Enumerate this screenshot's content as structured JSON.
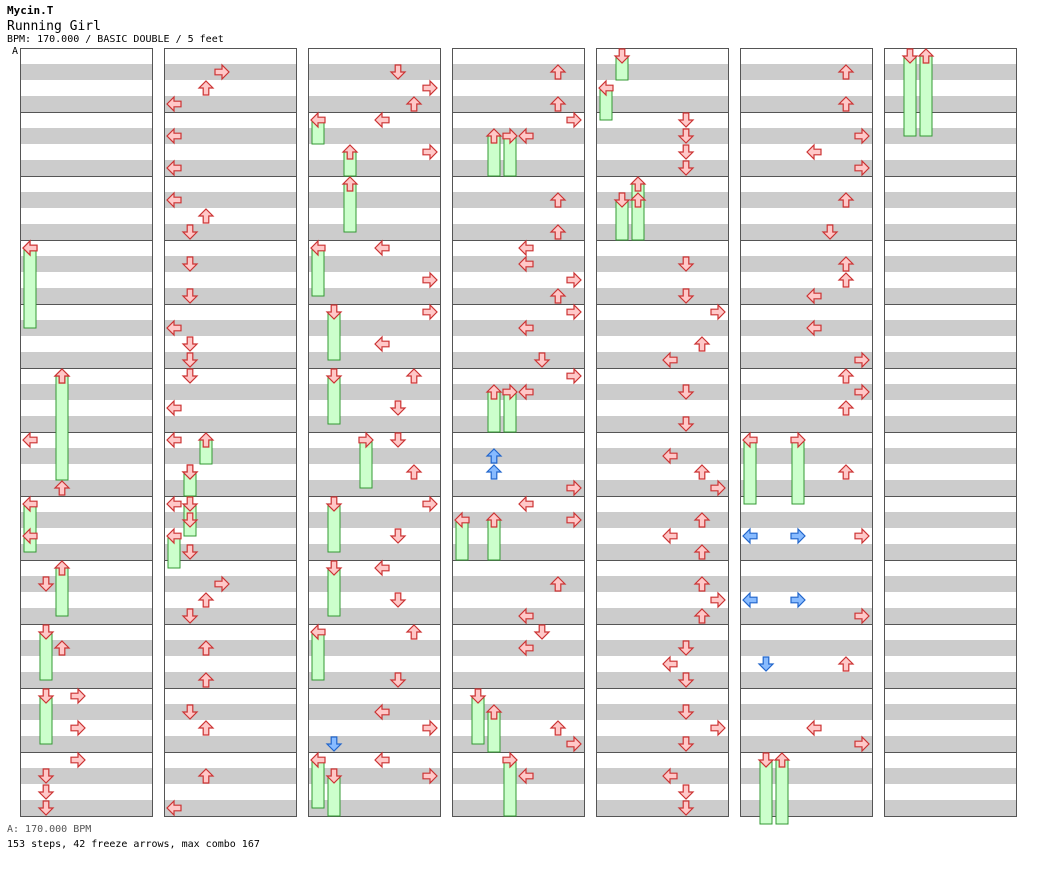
{
  "header": {
    "artist": "Mycin.T",
    "title": "Running Girl",
    "info": "BPM: 170.000 / BASIC DOUBLE / 5 feet",
    "bpm_marker": "A"
  },
  "footer": {
    "bpm_line": "A: 170.000 BPM",
    "stats": "153 steps, 42 freeze arrows, max combo 167"
  },
  "colors": {
    "step": "#ffc8c8",
    "step_stroke": "#cc3333",
    "freeze": "#ccffcc",
    "freeze_stroke": "#339933",
    "special": "#88bbff",
    "special_stroke": "#2266cc",
    "stripe": "#cccccc"
  },
  "chart": {
    "columns": 7,
    "measures_per_column": 12,
    "notes": [
      [
        0,
        3,
        0,
        "left",
        5
      ],
      [
        0,
        5,
        0,
        "up",
        4
      ],
      [
        0,
        6,
        0,
        "left",
        4
      ],
      [
        0,
        6,
        12,
        "up",
        4
      ],
      [
        0,
        7,
        8,
        "left",
        4
      ],
      [
        0,
        8,
        4,
        "down",
        4
      ],
      [
        0,
        9,
        4,
        "up",
        4
      ],
      [
        0,
        11,
        4,
        "down",
        4
      ],
      [
        0,
        11,
        8,
        "down",
        4
      ],
      [
        0,
        11,
        12,
        "down",
        4
      ],
      [
        0,
        10,
        0,
        "right",
        4
      ],
      [
        0,
        10,
        8,
        "right",
        4
      ],
      [
        0,
        11,
        0,
        "right",
        4
      ],
      [
        1,
        0,
        4,
        "right",
        3
      ],
      [
        1,
        0,
        8,
        "up",
        3
      ],
      [
        1,
        0,
        12,
        "left",
        3
      ],
      [
        1,
        1,
        4,
        "left",
        3
      ],
      [
        1,
        1,
        12,
        "left",
        3
      ],
      [
        1,
        2,
        4,
        "left",
        3
      ],
      [
        1,
        2,
        8,
        "up",
        3
      ],
      [
        1,
        2,
        12,
        "down",
        3
      ],
      [
        1,
        3,
        4,
        "down",
        3
      ],
      [
        1,
        3,
        12,
        "down",
        3
      ],
      [
        1,
        4,
        4,
        "left",
        3
      ],
      [
        1,
        4,
        8,
        "down",
        3
      ],
      [
        1,
        4,
        12,
        "down",
        3
      ],
      [
        1,
        5,
        0,
        "down",
        3
      ],
      [
        1,
        5,
        8,
        "left",
        3
      ],
      [
        1,
        6,
        0,
        "left",
        3
      ],
      [
        1,
        6,
        8,
        "down",
        3
      ],
      [
        1,
        7,
        0,
        "left",
        3
      ],
      [
        1,
        7,
        4,
        "down",
        3
      ],
      [
        1,
        7,
        12,
        "down",
        3
      ],
      [
        1,
        8,
        4,
        "right",
        3
      ],
      [
        1,
        8,
        8,
        "up",
        3
      ],
      [
        1,
        8,
        12,
        "down",
        3
      ],
      [
        1,
        9,
        4,
        "up",
        3
      ],
      [
        1,
        9,
        12,
        "up",
        3
      ],
      [
        1,
        10,
        4,
        "down",
        3
      ],
      [
        1,
        10,
        8,
        "up",
        3
      ],
      [
        1,
        11,
        4,
        "up",
        3
      ],
      [
        1,
        11,
        12,
        "left",
        3
      ],
      [
        2,
        0,
        4,
        "down",
        2
      ],
      [
        2,
        0,
        8,
        "right",
        2
      ],
      [
        2,
        0,
        12,
        "up",
        2
      ],
      [
        2,
        1,
        0,
        "left",
        2
      ],
      [
        2,
        1,
        8,
        "right",
        2
      ],
      [
        2,
        3,
        0,
        "left",
        2
      ],
      [
        2,
        3,
        8,
        "right",
        2
      ],
      [
        2,
        4,
        0,
        "right",
        2
      ],
      [
        2,
        4,
        8,
        "left",
        2
      ],
      [
        2,
        5,
        0,
        "up",
        2
      ],
      [
        2,
        5,
        8,
        "down",
        2
      ],
      [
        2,
        6,
        0,
        "down",
        2
      ],
      [
        2,
        6,
        8,
        "up",
        2
      ],
      [
        2,
        7,
        0,
        "right",
        2
      ],
      [
        2,
        7,
        8,
        "down",
        2
      ],
      [
        2,
        8,
        0,
        "left",
        2
      ],
      [
        2,
        8,
        8,
        "down",
        2
      ],
      [
        2,
        9,
        0,
        "up",
        2
      ],
      [
        2,
        9,
        12,
        "down",
        2
      ],
      [
        2,
        10,
        4,
        "left",
        2
      ],
      [
        2,
        10,
        8,
        "right",
        2
      ],
      [
        2,
        11,
        0,
        "left",
        2
      ],
      [
        2,
        11,
        4,
        "right",
        2
      ],
      [
        3,
        0,
        4,
        "up",
        2
      ],
      [
        3,
        0,
        12,
        "up",
        2
      ],
      [
        3,
        1,
        0,
        "right",
        2
      ],
      [
        3,
        1,
        4,
        "left",
        2
      ],
      [
        3,
        2,
        4,
        "up",
        2
      ],
      [
        3,
        2,
        12,
        "up",
        2
      ],
      [
        3,
        3,
        0,
        "left",
        2
      ],
      [
        3,
        3,
        4,
        "left",
        2
      ],
      [
        3,
        3,
        8,
        "right",
        2
      ],
      [
        3,
        3,
        12,
        "up",
        2
      ],
      [
        3,
        4,
        0,
        "right",
        2
      ],
      [
        3,
        4,
        4,
        "left",
        2
      ],
      [
        3,
        4,
        12,
        "down",
        2
      ],
      [
        3,
        5,
        0,
        "right",
        2
      ],
      [
        3,
        5,
        4,
        "left",
        2
      ],
      [
        3,
        6,
        12,
        "right",
        2
      ],
      [
        3,
        7,
        0,
        "left",
        2
      ],
      [
        3,
        7,
        4,
        "right",
        2
      ],
      [
        3,
        8,
        4,
        "up",
        2
      ],
      [
        3,
        8,
        12,
        "left",
        2
      ],
      [
        3,
        9,
        0,
        "down",
        2
      ],
      [
        3,
        9,
        4,
        "left",
        2
      ],
      [
        3,
        10,
        8,
        "up",
        2
      ],
      [
        3,
        10,
        12,
        "right",
        2
      ],
      [
        3,
        11,
        4,
        "left",
        2
      ],
      [
        4,
        1,
        0,
        "down",
        1
      ],
      [
        4,
        1,
        4,
        "down",
        1
      ],
      [
        4,
        1,
        8,
        "down",
        1
      ],
      [
        4,
        1,
        12,
        "down",
        1
      ],
      [
        4,
        3,
        4,
        "down",
        1
      ],
      [
        4,
        3,
        12,
        "down",
        1
      ],
      [
        4,
        4,
        0,
        "right",
        1
      ],
      [
        4,
        4,
        8,
        "up",
        1
      ],
      [
        4,
        4,
        12,
        "left",
        1
      ],
      [
        4,
        5,
        4,
        "down",
        1
      ],
      [
        4,
        5,
        12,
        "down",
        1
      ],
      [
        4,
        6,
        4,
        "left",
        1
      ],
      [
        4,
        6,
        8,
        "up",
        1
      ],
      [
        4,
        6,
        12,
        "right",
        1
      ],
      [
        4,
        7,
        4,
        "up",
        1
      ],
      [
        4,
        7,
        8,
        "left",
        1
      ],
      [
        4,
        7,
        12,
        "up",
        1
      ],
      [
        4,
        8,
        4,
        "up",
        1
      ],
      [
        4,
        8,
        8,
        "right",
        1
      ],
      [
        4,
        8,
        12,
        "up",
        1
      ],
      [
        4,
        9,
        4,
        "down",
        1
      ],
      [
        4,
        9,
        8,
        "left",
        1
      ],
      [
        4,
        9,
        12,
        "down",
        1
      ],
      [
        4,
        10,
        4,
        "down",
        1
      ],
      [
        4,
        10,
        8,
        "right",
        1
      ],
      [
        4,
        10,
        12,
        "down",
        1
      ],
      [
        4,
        11,
        4,
        "left",
        1
      ],
      [
        4,
        11,
        8,
        "down",
        1
      ],
      [
        4,
        11,
        12,
        "down",
        1
      ],
      [
        5,
        0,
        4,
        "up",
        1
      ],
      [
        5,
        0,
        12,
        "up",
        1
      ],
      [
        5,
        1,
        4,
        "right",
        1
      ],
      [
        5,
        1,
        8,
        "left",
        1
      ],
      [
        5,
        1,
        12,
        "right",
        1
      ],
      [
        5,
        2,
        4,
        "up",
        1
      ],
      [
        5,
        2,
        12,
        "down",
        1
      ],
      [
        5,
        3,
        4,
        "up",
        1
      ],
      [
        5,
        3,
        8,
        "up",
        1
      ],
      [
        5,
        3,
        12,
        "left",
        1
      ],
      [
        5,
        4,
        4,
        "left",
        1
      ],
      [
        5,
        4,
        12,
        "right",
        1
      ],
      [
        5,
        5,
        0,
        "up",
        1
      ],
      [
        5,
        5,
        4,
        "right",
        1
      ],
      [
        5,
        5,
        8,
        "up",
        1
      ],
      [
        5,
        6,
        8,
        "up",
        1
      ],
      [
        5,
        7,
        8,
        "right",
        1
      ],
      [
        5,
        8,
        12,
        "right",
        1
      ],
      [
        5,
        9,
        8,
        "up",
        1
      ],
      [
        5,
        10,
        8,
        "left",
        1
      ],
      [
        5,
        10,
        12,
        "right",
        1
      ]
    ],
    "freezes": [
      [
        0,
        3,
        0,
        0,
        3,
        20,
        "left"
      ],
      [
        0,
        5,
        0,
        0,
        6,
        10,
        "up"
      ],
      [
        0,
        7,
        0,
        0,
        7,
        12,
        "left"
      ],
      [
        0,
        8,
        0,
        0,
        8,
        12,
        "up"
      ],
      [
        0,
        9,
        0,
        0,
        9,
        12,
        "down"
      ],
      [
        0,
        10,
        0,
        0,
        10,
        12,
        "down"
      ],
      [
        1,
        6,
        0,
        1,
        6,
        6,
        "up"
      ],
      [
        1,
        6,
        8,
        1,
        6,
        14,
        "down"
      ],
      [
        1,
        7,
        0,
        1,
        7,
        8,
        "down"
      ],
      [
        1,
        7,
        8,
        1,
        7,
        16,
        "left"
      ],
      [
        2,
        1,
        0,
        2,
        1,
        6,
        "left"
      ],
      [
        2,
        1,
        8,
        2,
        1,
        14,
        "up"
      ],
      [
        2,
        2,
        0,
        2,
        2,
        12,
        "up"
      ],
      [
        2,
        3,
        0,
        2,
        3,
        12,
        "left"
      ],
      [
        2,
        4,
        0,
        2,
        4,
        12,
        "down"
      ],
      [
        2,
        5,
        0,
        2,
        5,
        12,
        "down"
      ],
      [
        2,
        6,
        0,
        2,
        6,
        12,
        "right"
      ],
      [
        2,
        7,
        0,
        2,
        7,
        12,
        "down"
      ],
      [
        2,
        8,
        0,
        2,
        8,
        12,
        "down"
      ],
      [
        2,
        9,
        0,
        2,
        9,
        12,
        "left"
      ],
      [
        2,
        11,
        0,
        2,
        11,
        12,
        "left"
      ],
      [
        2,
        11,
        4,
        2,
        11,
        14,
        "down"
      ],
      [
        3,
        1,
        4,
        3,
        1,
        14,
        "up"
      ],
      [
        3,
        1,
        4,
        3,
        1,
        14,
        "right"
      ],
      [
        3,
        5,
        4,
        3,
        5,
        14,
        "up"
      ],
      [
        3,
        5,
        4,
        3,
        5,
        14,
        "right"
      ],
      [
        3,
        7,
        4,
        3,
        7,
        14,
        "left"
      ],
      [
        3,
        7,
        4,
        3,
        7,
        14,
        "up"
      ],
      [
        3,
        10,
        0,
        3,
        10,
        12,
        "down"
      ],
      [
        3,
        10,
        4,
        3,
        10,
        14,
        "up"
      ],
      [
        3,
        11,
        0,
        3,
        11,
        14,
        "right"
      ],
      [
        4,
        0,
        0,
        4,
        0,
        6,
        "down"
      ],
      [
        4,
        0,
        8,
        4,
        0,
        16,
        "left"
      ],
      [
        4,
        2,
        0,
        4,
        2,
        8,
        "up"
      ],
      [
        4,
        2,
        4,
        4,
        2,
        14,
        "down"
      ],
      [
        4,
        2,
        4,
        4,
        2,
        14,
        "up"
      ],
      [
        5,
        6,
        0,
        5,
        6,
        16,
        "left"
      ],
      [
        5,
        6,
        0,
        5,
        7,
        0,
        "right"
      ],
      [
        5,
        11,
        0,
        5,
        11,
        16,
        "down"
      ],
      [
        5,
        11,
        0,
        5,
        11,
        16,
        "up"
      ],
      [
        6,
        0,
        0,
        6,
        1,
        4,
        "down"
      ],
      [
        6,
        0,
        0,
        6,
        1,
        4,
        "up"
      ]
    ],
    "special": [
      [
        2,
        10,
        12,
        "down"
      ],
      [
        3,
        6,
        4,
        "up"
      ],
      [
        3,
        6,
        8,
        "up"
      ],
      [
        5,
        7,
        8,
        "left"
      ],
      [
        5,
        7,
        8,
        "right"
      ],
      [
        5,
        8,
        8,
        "left"
      ],
      [
        5,
        8,
        8,
        "right"
      ],
      [
        5,
        9,
        8,
        "down"
      ]
    ]
  }
}
